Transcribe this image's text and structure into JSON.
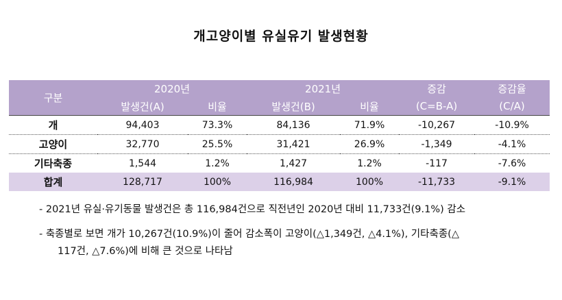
{
  "title": "개고양이별 유실유기 발생현황",
  "table": {
    "header": {
      "category": "구분",
      "year2020": "2020년",
      "year2021": "2021년",
      "change": "증감",
      "change_formula": "(C=B-A)",
      "change_rate": "증감율",
      "change_rate_formula": "(C/A)",
      "count_2020": "발생건(A)",
      "ratio_2020": "비율",
      "count_2021": "발생건(B)",
      "ratio_2021": "비율"
    },
    "rows": [
      {
        "category": "개",
        "count_2020": "94,403",
        "ratio_2020": "73.3%",
        "count_2021": "84,136",
        "ratio_2021": "71.9%",
        "change": "-10,267",
        "change_rate": "-10.9%"
      },
      {
        "category": "고양이",
        "count_2020": "32,770",
        "ratio_2020": "25.5%",
        "count_2021": "31,421",
        "ratio_2021": "26.9%",
        "change": "-1,349",
        "change_rate": "-4.1%"
      },
      {
        "category": "기타축종",
        "count_2020": "1,544",
        "ratio_2020": "1.2%",
        "count_2021": "1,427",
        "ratio_2021": "1.2%",
        "change": "-117",
        "change_rate": "-7.6%"
      },
      {
        "category": "합계",
        "count_2020": "128,717",
        "ratio_2020": "100%",
        "count_2021": "116,984",
        "ratio_2021": "100%",
        "change": "-11,733",
        "change_rate": "-9.1%"
      }
    ]
  },
  "notes": {
    "note1": "- 2021년 유실·유기동물 발생건은 총 116,984건으로 직전년인 2020년 대비 11,733건(9.1%) 감소",
    "note2_line1": "- 축종별로 보면 개가 10,267건(10.9%)이 줄어 감소폭이 고양이(△1,349건, △4.1%), 기타축종(△",
    "note2_line2": "117건, △7.6%)에 비해 큰 것으로 나타남"
  }
}
